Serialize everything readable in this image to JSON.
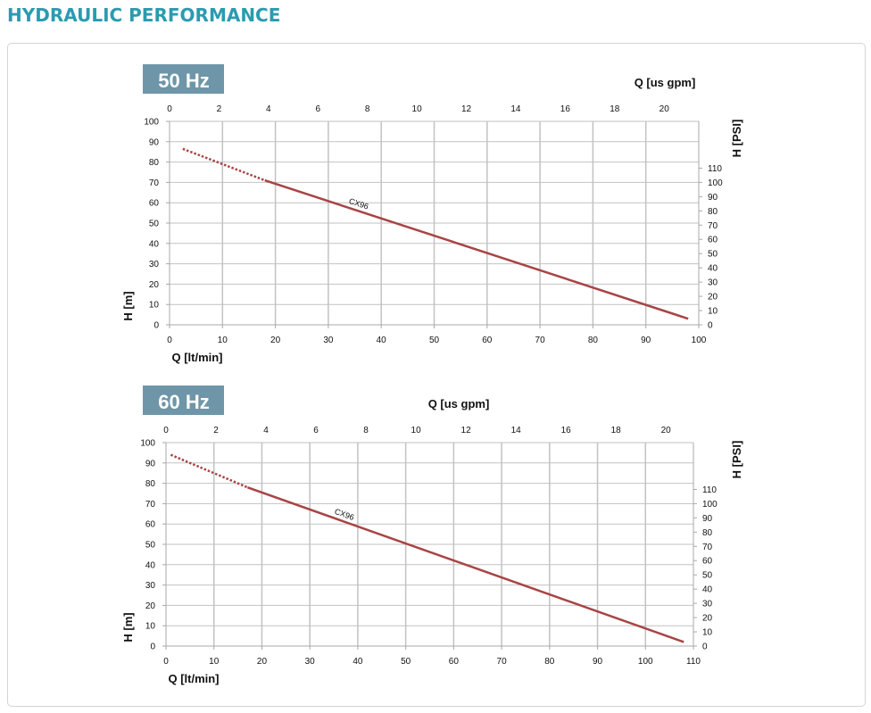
{
  "page": {
    "title": "HYDRAULIC PERFORMANCE"
  },
  "colors": {
    "title": "#2a9bb0",
    "badge": "#6e96a8",
    "curve": "#a84444",
    "grid": "#c2c2c2",
    "frame": "#a8a8a8"
  },
  "chart_data": [
    {
      "type": "line",
      "badge": "50 Hz",
      "xlabel": "Q [lt/min]",
      "x2label": "Q [us gpm]",
      "ylabel": "H [m]",
      "y2label": "H [PSI]",
      "xlim": [
        0,
        100
      ],
      "ylim": [
        0,
        100
      ],
      "x_ticks": [
        0,
        10,
        20,
        30,
        40,
        50,
        60,
        70,
        80,
        90,
        100
      ],
      "y_ticks": [
        0,
        10,
        20,
        30,
        40,
        50,
        60,
        70,
        80,
        90,
        100
      ],
      "x2_ticks": [
        0,
        2,
        4,
        6,
        8,
        10,
        12,
        14,
        16,
        18,
        20
      ],
      "y2_ticks": [
        0,
        10,
        20,
        30,
        40,
        50,
        60,
        70,
        80,
        90,
        100,
        110
      ],
      "grid": true,
      "series": [
        {
          "name": "CX96",
          "x": [
            2.5,
            18,
            98
          ],
          "y": [
            86.5,
            71,
            3
          ],
          "dotted_until_x": 18
        }
      ]
    },
    {
      "type": "line",
      "badge": "60 Hz",
      "xlabel": "Q [lt/min]",
      "x2label": "Q [us gpm]",
      "ylabel": "H [m]",
      "y2label": "H [PSI]",
      "xlim": [
        0,
        110
      ],
      "ylim": [
        0,
        100
      ],
      "x_ticks": [
        0,
        10,
        20,
        30,
        40,
        50,
        60,
        70,
        80,
        90,
        100,
        110
      ],
      "y_ticks": [
        0,
        10,
        20,
        30,
        40,
        50,
        60,
        70,
        80,
        90,
        100
      ],
      "x2_ticks": [
        0,
        2,
        4,
        6,
        8,
        10,
        12,
        14,
        16,
        18,
        20
      ],
      "y2_ticks": [
        0,
        10,
        20,
        30,
        40,
        50,
        60,
        70,
        80,
        90,
        100,
        110
      ],
      "grid": true,
      "series": [
        {
          "name": "CX96",
          "x": [
            1,
            17,
            108
          ],
          "y": [
            94,
            78,
            2
          ],
          "dotted_until_x": 17
        }
      ]
    }
  ]
}
